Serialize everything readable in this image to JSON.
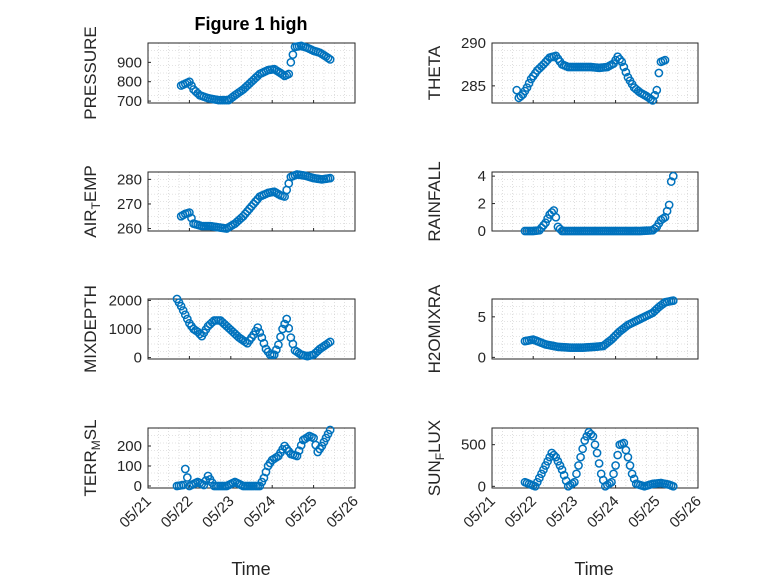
{
  "title": "Figure 1 high",
  "x_label": "Time",
  "x_ticks": [
    "05/21",
    "05/22",
    "05/23",
    "05/24",
    "05/25",
    "05/26"
  ],
  "marker_color": "#0072BD",
  "chart_data": [
    {
      "type": "scatter",
      "ylabel": "PRESSURE",
      "ylim": [
        690,
        1000
      ],
      "yticks": [
        "700",
        "800",
        "900"
      ],
      "ytick_values": [
        700,
        800,
        900
      ],
      "points": [
        [
          0.8,
          780
        ],
        [
          0.9,
          790
        ],
        [
          1.0,
          800
        ],
        [
          1.1,
          760
        ],
        [
          1.25,
          730
        ],
        [
          1.45,
          715
        ],
        [
          1.7,
          705
        ],
        [
          1.95,
          705
        ],
        [
          2.1,
          730
        ],
        [
          2.3,
          760
        ],
        [
          2.5,
          800
        ],
        [
          2.7,
          840
        ],
        [
          2.9,
          860
        ],
        [
          3.05,
          865
        ],
        [
          3.2,
          845
        ],
        [
          3.3,
          830
        ],
        [
          3.4,
          840
        ],
        [
          3.45,
          900
        ],
        [
          3.55,
          980
        ],
        [
          3.7,
          985
        ],
        [
          3.85,
          975
        ],
        [
          4.0,
          960
        ],
        [
          4.15,
          950
        ],
        [
          4.3,
          930
        ],
        [
          4.4,
          915
        ]
      ]
    },
    {
      "type": "scatter",
      "ylabel": "THETA",
      "ylim": [
        283,
        290
      ],
      "yticks": [
        "285",
        "290"
      ],
      "ytick_values": [
        285,
        290
      ],
      "points": [
        [
          0.6,
          284.5
        ],
        [
          0.65,
          283.6
        ],
        [
          0.75,
          284.0
        ],
        [
          0.85,
          284.8
        ],
        [
          0.95,
          285.8
        ],
        [
          1.1,
          286.8
        ],
        [
          1.25,
          287.5
        ],
        [
          1.4,
          288.3
        ],
        [
          1.55,
          288.5
        ],
        [
          1.7,
          287.5
        ],
        [
          1.85,
          287.2
        ],
        [
          2.1,
          287.2
        ],
        [
          2.4,
          287.2
        ],
        [
          2.6,
          287.1
        ],
        [
          2.8,
          287.2
        ],
        [
          2.95,
          287.6
        ],
        [
          3.05,
          288.4
        ],
        [
          3.15,
          287.8
        ],
        [
          3.3,
          286.0
        ],
        [
          3.45,
          284.8
        ],
        [
          3.6,
          284.2
        ],
        [
          3.75,
          283.8
        ],
        [
          3.9,
          283.3
        ],
        [
          4.0,
          284.5
        ],
        [
          4.05,
          286.5
        ],
        [
          4.1,
          287.8
        ],
        [
          4.2,
          288.0
        ]
      ]
    },
    {
      "type": "scatter",
      "ylabel": "AIR_TEMP",
      "ylabel_main": "AIR",
      "ylabel_sub": "T",
      "ylabel_rest": "EMP",
      "ylim": [
        259,
        283
      ],
      "yticks": [
        "260",
        "270",
        "280"
      ],
      "ytick_values": [
        260,
        270,
        280
      ],
      "points": [
        [
          0.8,
          265
        ],
        [
          0.9,
          266
        ],
        [
          1.0,
          266.5
        ],
        [
          1.1,
          262
        ],
        [
          1.3,
          261
        ],
        [
          1.5,
          261
        ],
        [
          1.7,
          260.5
        ],
        [
          1.9,
          260
        ],
        [
          2.1,
          262
        ],
        [
          2.3,
          265
        ],
        [
          2.5,
          269
        ],
        [
          2.7,
          273
        ],
        [
          2.9,
          274.5
        ],
        [
          3.05,
          275
        ],
        [
          3.2,
          273.5
        ],
        [
          3.3,
          273
        ],
        [
          3.45,
          281
        ],
        [
          3.6,
          282
        ],
        [
          3.8,
          281.5
        ],
        [
          4.0,
          280.5
        ],
        [
          4.2,
          280
        ],
        [
          4.4,
          280.5
        ]
      ]
    },
    {
      "type": "scatter",
      "ylabel": "RAINFALL",
      "ylim": [
        0,
        4.3
      ],
      "yticks": [
        "0",
        "2",
        "4"
      ],
      "ytick_values": [
        0,
        2,
        4
      ],
      "points": [
        [
          0.8,
          0
        ],
        [
          1.0,
          0
        ],
        [
          1.15,
          0.05
        ],
        [
          1.3,
          0.6
        ],
        [
          1.4,
          1.2
        ],
        [
          1.5,
          1.5
        ],
        [
          1.55,
          1.0
        ],
        [
          1.6,
          0.3
        ],
        [
          1.7,
          0
        ],
        [
          2.0,
          0
        ],
        [
          2.4,
          0
        ],
        [
          2.8,
          0
        ],
        [
          3.2,
          0
        ],
        [
          3.6,
          0
        ],
        [
          3.9,
          0.05
        ],
        [
          4.0,
          0.3
        ],
        [
          4.1,
          0.8
        ],
        [
          4.2,
          1.0
        ],
        [
          4.3,
          1.9
        ],
        [
          4.35,
          3.6
        ],
        [
          4.4,
          4.0
        ]
      ]
    },
    {
      "type": "scatter",
      "ylabel": "MIXDEPTH",
      "ylim": [
        -50,
        2050
      ],
      "yticks": [
        "0",
        "1000",
        "2000"
      ],
      "ytick_values": [
        0,
        1000,
        2000
      ],
      "points": [
        [
          0.7,
          2050
        ],
        [
          0.8,
          1800
        ],
        [
          0.9,
          1500
        ],
        [
          1.0,
          1200
        ],
        [
          1.1,
          1000
        ],
        [
          1.2,
          900
        ],
        [
          1.3,
          750
        ],
        [
          1.45,
          1100
        ],
        [
          1.6,
          1300
        ],
        [
          1.75,
          1300
        ],
        [
          1.9,
          1100
        ],
        [
          2.05,
          900
        ],
        [
          2.2,
          700
        ],
        [
          2.4,
          500
        ],
        [
          2.55,
          800
        ],
        [
          2.65,
          1050
        ],
        [
          2.75,
          700
        ],
        [
          2.85,
          300
        ],
        [
          2.95,
          100
        ],
        [
          3.05,
          100
        ],
        [
          3.15,
          450
        ],
        [
          3.25,
          1000
        ],
        [
          3.35,
          1350
        ],
        [
          3.45,
          700
        ],
        [
          3.55,
          250
        ],
        [
          3.7,
          100
        ],
        [
          3.85,
          50
        ],
        [
          4.0,
          100
        ],
        [
          4.15,
          300
        ],
        [
          4.3,
          450
        ],
        [
          4.4,
          550
        ]
      ]
    },
    {
      "type": "scatter",
      "ylabel": "H2OMIXRA",
      "ylim": [
        -0.2,
        7.2
      ],
      "yticks": [
        "0",
        "5"
      ],
      "ytick_values": [
        0,
        5
      ],
      "points": [
        [
          0.8,
          2.0
        ],
        [
          1.0,
          2.2
        ],
        [
          1.3,
          1.6
        ],
        [
          1.6,
          1.3
        ],
        [
          1.9,
          1.2
        ],
        [
          2.2,
          1.2
        ],
        [
          2.5,
          1.3
        ],
        [
          2.7,
          1.4
        ],
        [
          2.9,
          2.2
        ],
        [
          3.1,
          3.2
        ],
        [
          3.3,
          4.0
        ],
        [
          3.5,
          4.5
        ],
        [
          3.7,
          5.0
        ],
        [
          3.9,
          5.5
        ],
        [
          4.05,
          6.2
        ],
        [
          4.2,
          6.8
        ],
        [
          4.4,
          7.0
        ]
      ]
    },
    {
      "type": "scatter",
      "ylabel": "TERR_MSL",
      "ylabel_main": "TERR",
      "ylabel_sub": "M",
      "ylabel_rest": "SL",
      "ylim": [
        -10,
        290
      ],
      "yticks": [
        "0",
        "100",
        "200"
      ],
      "ytick_values": [
        0,
        100,
        200
      ],
      "points": [
        [
          0.7,
          0
        ],
        [
          0.85,
          5
        ],
        [
          0.9,
          85
        ],
        [
          1.0,
          0
        ],
        [
          1.2,
          20
        ],
        [
          1.35,
          5
        ],
        [
          1.45,
          50
        ],
        [
          1.6,
          0
        ],
        [
          1.9,
          0
        ],
        [
          2.1,
          20
        ],
        [
          2.3,
          0
        ],
        [
          2.5,
          0
        ],
        [
          2.7,
          0
        ],
        [
          2.8,
          40
        ],
        [
          2.9,
          100
        ],
        [
          3.0,
          130
        ],
        [
          3.15,
          150
        ],
        [
          3.3,
          200
        ],
        [
          3.45,
          160
        ],
        [
          3.6,
          150
        ],
        [
          3.75,
          230
        ],
        [
          3.9,
          250
        ],
        [
          4.0,
          240
        ],
        [
          4.1,
          170
        ],
        [
          4.2,
          200
        ],
        [
          4.3,
          240
        ],
        [
          4.4,
          280
        ]
      ]
    },
    {
      "type": "scatter",
      "ylabel": "SUN_FLUX",
      "ylabel_main": "SUN",
      "ylabel_sub": "F",
      "ylabel_rest": "LUX",
      "ylim": [
        -20,
        700
      ],
      "yticks": [
        "0",
        "500"
      ],
      "ytick_values": [
        0,
        500
      ],
      "points": [
        [
          0.8,
          50
        ],
        [
          0.95,
          20
        ],
        [
          1.05,
          0
        ],
        [
          1.2,
          150
        ],
        [
          1.35,
          300
        ],
        [
          1.45,
          400
        ],
        [
          1.55,
          350
        ],
        [
          1.7,
          200
        ],
        [
          1.85,
          0
        ],
        [
          2.0,
          50
        ],
        [
          2.15,
          350
        ],
        [
          2.25,
          550
        ],
        [
          2.35,
          650
        ],
        [
          2.45,
          600
        ],
        [
          2.55,
          400
        ],
        [
          2.65,
          150
        ],
        [
          2.75,
          0
        ],
        [
          2.9,
          50
        ],
        [
          3.0,
          250
        ],
        [
          3.1,
          500
        ],
        [
          3.2,
          520
        ],
        [
          3.3,
          350
        ],
        [
          3.4,
          150
        ],
        [
          3.5,
          30
        ],
        [
          3.7,
          0
        ],
        [
          3.9,
          30
        ],
        [
          4.1,
          40
        ],
        [
          4.3,
          20
        ],
        [
          4.4,
          0
        ]
      ]
    }
  ]
}
